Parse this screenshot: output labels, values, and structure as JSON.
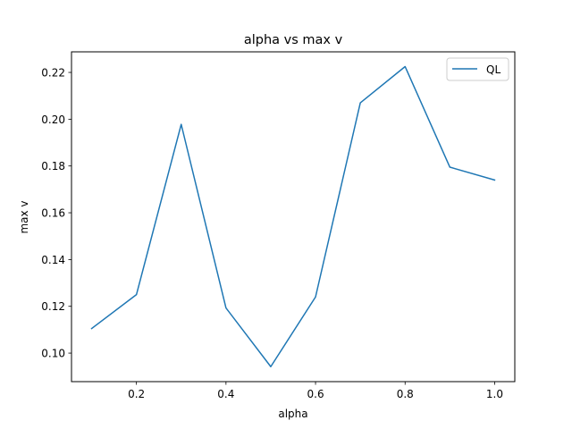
{
  "chart_data": {
    "type": "line",
    "title": "alpha vs max v",
    "xlabel": "alpha",
    "ylabel": "max v",
    "xlim": [
      0.055,
      1.045
    ],
    "ylim": [
      0.0878,
      0.2288
    ],
    "xticks": [
      0.2,
      0.4,
      0.6,
      0.8,
      1.0
    ],
    "xtick_labels": [
      "0.2",
      "0.4",
      "0.6",
      "0.8",
      "1.0"
    ],
    "yticks": [
      0.1,
      0.12,
      0.14,
      0.16,
      0.18,
      0.2,
      0.22
    ],
    "ytick_labels": [
      "0.10",
      "0.12",
      "0.14",
      "0.16",
      "0.18",
      "0.20",
      "0.22"
    ],
    "grid": false,
    "legend_position": "top-right",
    "series": [
      {
        "name": "QL",
        "color": "#1f77b4",
        "x": [
          0.1,
          0.2,
          0.3,
          0.4,
          0.5,
          0.6,
          0.7,
          0.8,
          0.9,
          1.0
        ],
        "y": [
          0.1105,
          0.125,
          0.1978,
          0.1193,
          0.0942,
          0.124,
          0.207,
          0.2225,
          0.1795,
          0.174
        ]
      }
    ]
  }
}
